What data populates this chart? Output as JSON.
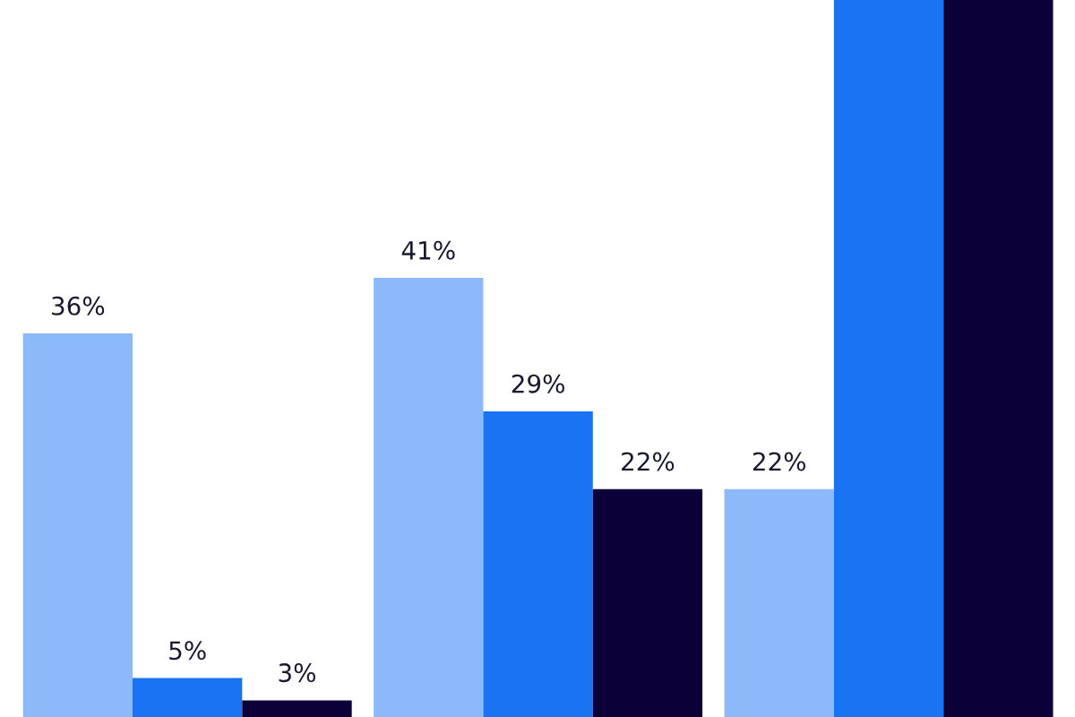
{
  "chart_data": {
    "type": "bar",
    "categories": [
      null,
      null,
      null
    ],
    "series": [
      {
        "color": "#8cb9f9",
        "values": [
          36,
          41,
          22
        ],
        "value_labels": [
          "36%",
          "41%",
          "22%"
        ]
      },
      {
        "color": "#1a73f2",
        "values": [
          5,
          29,
          66
        ],
        "value_labels": [
          "5%",
          "29%",
          null
        ]
      },
      {
        "color": "#0c0038",
        "values": [
          3,
          22,
          66
        ],
        "value_labels": [
          "3%",
          "22%",
          null
        ]
      }
    ],
    "ylim": [
      1.5,
      66
    ],
    "tick_labels": false,
    "legend": false
  }
}
